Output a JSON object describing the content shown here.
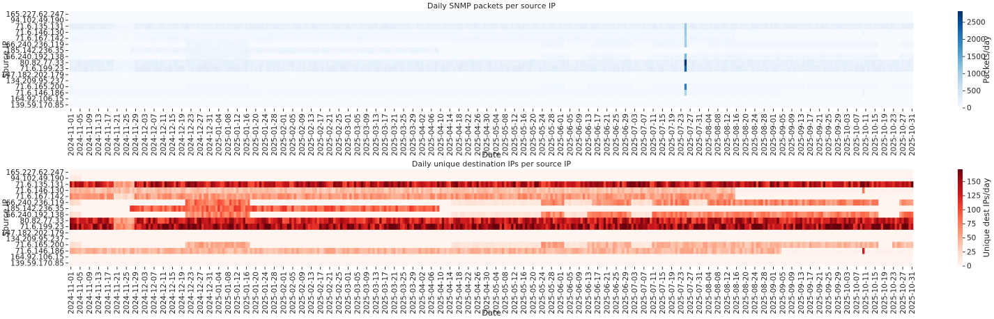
{
  "chart_data": [
    {
      "type": "heatmap",
      "title": "Daily SNMP packets per source IP",
      "xlabel": "Date",
      "ylabel": "Source IP",
      "colorbar_label": "Packets/day",
      "colormap": "Blues",
      "colormap_stops": [
        "#f7fbff",
        "#deebf7",
        "#c6dbef",
        "#9ecae1",
        "#6baed6",
        "#4292c6",
        "#2171b5",
        "#08519c",
        "#08306b"
      ],
      "vmin": 0,
      "vmax": 2825,
      "colorbar_ticks": [
        0,
        500,
        1000,
        1500,
        2000,
        2500
      ],
      "date_range": [
        "2024-11-01",
        "2025-10-31"
      ],
      "y_categories": [
        "165.227.62.247",
        "94.102.49.190",
        "71.6.135.131",
        "71.6.146.130",
        "71.6.167.142",
        "66.240.236.119",
        "185.142.236.35",
        "66.240.192.138",
        "80.82.77.33",
        "71.6.199.23",
        "147.182.202.179",
        "134.209.95.237",
        "71.6.165.200",
        "71.6.146.186",
        "164.92.106.15",
        "139.59.170.85"
      ],
      "x_tick_labels": [
        "2024-11-01",
        "2024-11-05",
        "2024-11-09",
        "2024-11-13",
        "2024-11-17",
        "2024-11-21",
        "2024-11-25",
        "2024-11-29",
        "2024-12-03",
        "2024-12-07",
        "2024-12-11",
        "2024-12-15",
        "2024-12-19",
        "2024-12-23",
        "2024-12-27",
        "2024-12-31",
        "2025-01-04",
        "2025-01-08",
        "2025-01-12",
        "2025-01-16",
        "2025-01-20",
        "2025-01-24",
        "2025-01-28",
        "2025-02-01",
        "2025-02-05",
        "2025-02-09",
        "2025-02-13",
        "2025-02-17",
        "2025-02-21",
        "2025-02-25",
        "2025-03-01",
        "2025-03-05",
        "2025-03-09",
        "2025-03-13",
        "2025-03-17",
        "2025-03-21",
        "2025-03-25",
        "2025-03-29",
        "2025-04-02",
        "2025-04-06",
        "2025-04-10",
        "2025-04-14",
        "2025-04-18",
        "2025-04-22",
        "2025-04-26",
        "2025-04-30",
        "2025-05-04",
        "2025-05-08",
        "2025-05-12",
        "2025-05-16",
        "2025-05-20",
        "2025-05-24",
        "2025-05-28",
        "2025-06-01",
        "2025-06-05",
        "2025-06-09",
        "2025-06-13",
        "2025-06-17",
        "2025-06-21",
        "2025-06-25",
        "2025-06-29",
        "2025-07-03",
        "2025-07-07",
        "2025-07-11",
        "2025-07-15",
        "2025-07-19",
        "2025-07-23",
        "2025-07-27",
        "2025-07-31",
        "2025-08-04",
        "2025-08-08",
        "2025-08-12",
        "2025-08-16",
        "2025-08-20",
        "2025-08-24",
        "2025-08-28",
        "2025-09-01",
        "2025-09-05",
        "2025-09-09",
        "2025-09-13",
        "2025-09-17",
        "2025-09-21",
        "2025-09-25",
        "2025-09-29",
        "2025-10-03",
        "2025-10-07",
        "2025-10-11",
        "2025-10-15",
        "2025-10-19",
        "2025-10-23",
        "2025-10-27",
        "2025-10-31"
      ],
      "row_segments": [
        [],
        [
          [
            "2024-11-01",
            "2024-11-05",
            15
          ]
        ],
        [
          [
            "2024-11-01",
            "2024-11-19",
            200
          ],
          [
            "2024-11-20",
            "2024-11-28",
            80
          ],
          [
            "2024-11-29",
            "2025-10-31",
            200
          ],
          [
            "2025-07-25",
            "2025-07-25",
            1100
          ]
        ],
        [
          [
            "2024-11-01",
            "2025-08-15",
            60
          ],
          [
            "2025-08-16",
            "2025-10-31",
            6
          ],
          [
            "2025-10-10",
            "2025-10-10",
            120
          ],
          [
            "2025-07-25",
            "2025-07-25",
            1100
          ]
        ],
        [
          [
            "2024-11-01",
            "2025-08-15",
            90
          ],
          [
            "2024-11-20",
            "2024-11-28",
            35
          ],
          [
            "2025-07-25",
            "2025-07-25",
            1000
          ]
        ],
        [
          [
            "2024-11-01",
            "2024-11-05",
            35
          ],
          [
            "2024-12-21",
            "2025-01-17",
            110
          ],
          [
            "2025-04-15",
            "2025-05-23",
            20
          ],
          [
            "2025-05-24",
            "2025-06-02",
            100
          ],
          [
            "2025-06-03",
            "2025-06-14",
            30
          ],
          [
            "2025-06-15",
            "2025-10-16",
            100
          ],
          [
            "2025-07-02",
            "2025-07-10",
            30
          ],
          [
            "2025-07-27",
            "2025-08-03",
            30
          ],
          [
            "2025-10-26",
            "2025-10-31",
            100
          ],
          [
            "2025-07-25",
            "2025-07-25",
            1000
          ]
        ],
        [
          [
            "2024-11-27",
            "2025-04-09",
            130
          ]
        ],
        [
          [
            "2024-11-01",
            "2024-11-05",
            30
          ],
          [
            "2024-12-21",
            "2025-01-17",
            110
          ],
          [
            "2025-04-15",
            "2025-05-23",
            20
          ],
          [
            "2025-05-24",
            "2025-06-02",
            100
          ],
          [
            "2025-06-03",
            "2025-06-12",
            30
          ],
          [
            "2025-06-13",
            "2025-10-16",
            100
          ],
          [
            "2025-07-02",
            "2025-07-10",
            20
          ],
          [
            "2025-10-26",
            "2025-10-31",
            110
          ],
          [
            "2025-07-25",
            "2025-07-25",
            1300
          ]
        ],
        [
          [
            "2024-11-01",
            "2025-10-31",
            200
          ],
          [
            "2024-11-20",
            "2024-11-28",
            90
          ],
          [
            "2025-07-25",
            "2025-07-25",
            2800
          ]
        ],
        [
          [
            "2024-11-01",
            "2025-10-31",
            230
          ],
          [
            "2024-11-20",
            "2024-11-28",
            100
          ],
          [
            "2025-07-25",
            "2025-07-25",
            2300
          ]
        ],
        [],
        [],
        [
          [
            "2024-11-01",
            "2024-11-05",
            30
          ],
          [
            "2024-12-21",
            "2025-01-17",
            75
          ],
          [
            "2025-04-15",
            "2025-05-23",
            20
          ],
          [
            "2025-05-24",
            "2025-06-02",
            80
          ],
          [
            "2025-06-03",
            "2025-06-12",
            20
          ],
          [
            "2025-06-13",
            "2025-10-16",
            70
          ],
          [
            "2025-07-02",
            "2025-07-10",
            18
          ],
          [
            "2025-10-23",
            "2025-10-31",
            70
          ],
          [
            "2025-07-25",
            "2025-07-25",
            2000
          ]
        ],
        [
          [
            "2024-11-01",
            "2025-09-04",
            70
          ],
          [
            "2025-09-05",
            "2025-10-31",
            5
          ],
          [
            "2025-10-10",
            "2025-10-10",
            190
          ],
          [
            "2025-07-25",
            "2025-07-25",
            900
          ]
        ],
        [],
        []
      ]
    },
    {
      "type": "heatmap",
      "title": "Daily unique destination IPs per source IP",
      "xlabel": "Date",
      "ylabel": "Source IP",
      "colorbar_label": "Unique dest IPs/day",
      "colormap": "Reds",
      "colormap_stops": [
        "#fff5f0",
        "#fee0d2",
        "#fcbba1",
        "#fc9272",
        "#fb6a4a",
        "#ef3b2c",
        "#cb181d",
        "#a50f15",
        "#67000d"
      ],
      "vmin": 0,
      "vmax": 172,
      "colorbar_ticks": [
        0,
        25,
        50,
        75,
        100,
        125,
        150
      ],
      "date_range": [
        "2024-11-01",
        "2025-10-31"
      ],
      "y_categories": [
        "165.227.62.247",
        "94.102.49.190",
        "71.6.135.131",
        "71.6.146.130",
        "71.6.167.142",
        "66.240.236.119",
        "185.142.236.35",
        "66.240.192.138",
        "80.82.77.33",
        "71.6.199.23",
        "147.182.202.179",
        "134.209.95.237",
        "71.6.165.200",
        "71.6.146.186",
        "164.92.106.15",
        "139.59.170.85"
      ],
      "x_tick_labels": [
        "2024-11-01",
        "2024-11-05",
        "2024-11-09",
        "2024-11-13",
        "2024-11-17",
        "2024-11-21",
        "2024-11-25",
        "2024-11-29",
        "2024-12-03",
        "2024-12-07",
        "2024-12-11",
        "2024-12-15",
        "2024-12-19",
        "2024-12-23",
        "2024-12-27",
        "2024-12-31",
        "2025-01-04",
        "2025-01-08",
        "2025-01-12",
        "2025-01-16",
        "2025-01-20",
        "2025-01-24",
        "2025-01-28",
        "2025-02-01",
        "2025-02-05",
        "2025-02-09",
        "2025-02-13",
        "2025-02-17",
        "2025-02-21",
        "2025-02-25",
        "2025-03-01",
        "2025-03-05",
        "2025-03-09",
        "2025-03-13",
        "2025-03-17",
        "2025-03-21",
        "2025-03-25",
        "2025-03-29",
        "2025-04-02",
        "2025-04-06",
        "2025-04-10",
        "2025-04-14",
        "2025-04-18",
        "2025-04-22",
        "2025-04-26",
        "2025-04-30",
        "2025-05-04",
        "2025-05-08",
        "2025-05-12",
        "2025-05-16",
        "2025-05-20",
        "2025-05-24",
        "2025-05-28",
        "2025-06-01",
        "2025-06-05",
        "2025-06-09",
        "2025-06-13",
        "2025-06-17",
        "2025-06-21",
        "2025-06-25",
        "2025-06-29",
        "2025-07-03",
        "2025-07-07",
        "2025-07-11",
        "2025-07-15",
        "2025-07-19",
        "2025-07-23",
        "2025-07-27",
        "2025-07-31",
        "2025-08-04",
        "2025-08-08",
        "2025-08-12",
        "2025-08-16",
        "2025-08-20",
        "2025-08-24",
        "2025-08-28",
        "2025-09-01",
        "2025-09-05",
        "2025-09-09",
        "2025-09-13",
        "2025-09-17",
        "2025-09-21",
        "2025-09-25",
        "2025-09-29",
        "2025-10-03",
        "2025-10-07",
        "2025-10-11",
        "2025-10-15",
        "2025-10-19",
        "2025-10-23",
        "2025-10-27",
        "2025-10-31"
      ],
      "row_segments": [
        [],
        [
          [
            "2024-11-01",
            "2024-11-05",
            10
          ]
        ],
        [
          [
            "2024-11-01",
            "2024-11-19",
            130
          ],
          [
            "2024-11-20",
            "2024-11-28",
            55
          ],
          [
            "2024-11-29",
            "2025-10-31",
            135
          ]
        ],
        [
          [
            "2024-11-01",
            "2025-08-15",
            40
          ],
          [
            "2025-08-16",
            "2025-10-31",
            4
          ],
          [
            "2025-10-10",
            "2025-10-10",
            80
          ]
        ],
        [
          [
            "2024-11-01",
            "2025-08-15",
            60
          ],
          [
            "2024-11-20",
            "2024-11-28",
            25
          ]
        ],
        [
          [
            "2024-11-01",
            "2024-11-05",
            25
          ],
          [
            "2024-12-21",
            "2025-01-17",
            80
          ],
          [
            "2025-04-15",
            "2025-05-23",
            15
          ],
          [
            "2025-05-24",
            "2025-06-02",
            70
          ],
          [
            "2025-06-03",
            "2025-06-14",
            20
          ],
          [
            "2025-06-15",
            "2025-10-16",
            70
          ],
          [
            "2025-07-02",
            "2025-07-10",
            20
          ],
          [
            "2025-07-27",
            "2025-08-03",
            20
          ],
          [
            "2025-10-26",
            "2025-10-31",
            70
          ]
        ],
        [
          [
            "2024-11-27",
            "2025-04-09",
            90
          ]
        ],
        [
          [
            "2024-11-01",
            "2024-11-05",
            20
          ],
          [
            "2024-12-21",
            "2025-01-17",
            75
          ],
          [
            "2025-04-15",
            "2025-05-23",
            15
          ],
          [
            "2025-05-24",
            "2025-06-02",
            70
          ],
          [
            "2025-06-03",
            "2025-06-12",
            20
          ],
          [
            "2025-06-13",
            "2025-10-16",
            70
          ],
          [
            "2025-07-02",
            "2025-07-10",
            15
          ],
          [
            "2025-10-26",
            "2025-10-31",
            75
          ]
        ],
        [
          [
            "2024-11-01",
            "2025-10-31",
            130
          ],
          [
            "2024-11-20",
            "2024-11-28",
            60
          ]
        ],
        [
          [
            "2024-11-01",
            "2025-10-31",
            150
          ],
          [
            "2024-11-20",
            "2024-11-28",
            70
          ]
        ],
        [],
        [],
        [
          [
            "2024-11-01",
            "2024-11-05",
            20
          ],
          [
            "2024-12-21",
            "2025-01-17",
            50
          ],
          [
            "2025-04-15",
            "2025-05-23",
            15
          ],
          [
            "2025-05-24",
            "2025-06-02",
            55
          ],
          [
            "2025-06-03",
            "2025-06-12",
            15
          ],
          [
            "2025-06-13",
            "2025-10-16",
            45
          ],
          [
            "2025-07-02",
            "2025-07-10",
            12
          ],
          [
            "2025-10-23",
            "2025-10-31",
            45
          ]
        ],
        [
          [
            "2024-11-01",
            "2025-09-04",
            45
          ],
          [
            "2025-09-05",
            "2025-10-31",
            3
          ],
          [
            "2025-10-10",
            "2025-10-10",
            130
          ]
        ],
        [],
        []
      ]
    }
  ]
}
